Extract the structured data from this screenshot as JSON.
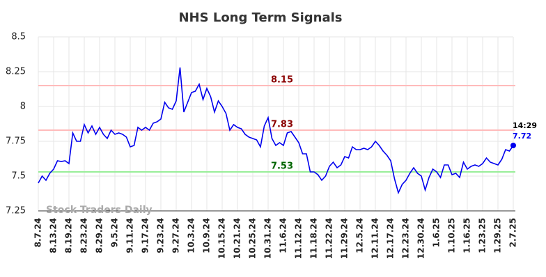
{
  "chart_data": {
    "type": "line",
    "title": "NHS Long Term Signals",
    "watermark": "Stock Traders Daily",
    "categories": [
      "8.7.24",
      null,
      null,
      null,
      "8.13.24",
      null,
      null,
      null,
      "8.19.24",
      null,
      null,
      null,
      "8.23.24",
      null,
      null,
      null,
      "8.29.24",
      null,
      null,
      null,
      "9.5.24",
      null,
      null,
      null,
      "9.11.24",
      null,
      null,
      null,
      "9.17.24",
      null,
      null,
      null,
      "9.23.24",
      null,
      null,
      null,
      "9.27.24",
      null,
      null,
      null,
      "10.3.24",
      null,
      null,
      null,
      "10.9.24",
      null,
      null,
      null,
      "10.15.24",
      null,
      null,
      null,
      "10.21.24",
      null,
      null,
      null,
      "10.25.24",
      null,
      null,
      null,
      "10.31.24",
      null,
      null,
      null,
      "11.6.24",
      null,
      null,
      null,
      "11.12.24",
      null,
      null,
      null,
      "11.18.24",
      null,
      null,
      null,
      "11.22.24",
      null,
      null,
      null,
      "11.29.24",
      null,
      null,
      null,
      "12.5.24",
      null,
      null,
      null,
      "12.11.24",
      null,
      null,
      null,
      "12.17.24",
      null,
      null,
      null,
      "12.23.24",
      null,
      null,
      null,
      "12.30.24",
      null,
      null,
      null,
      "1.6.25",
      null,
      null,
      null,
      "1.10.25",
      null,
      null,
      null,
      "1.16.25",
      null,
      null,
      null,
      "1.23.25",
      null,
      null,
      null,
      "1.29.25",
      null,
      null,
      null,
      "2.7.25"
    ],
    "series": [
      {
        "color": "#0000ee",
        "values": [
          7.45,
          7.5,
          7.47,
          7.52,
          7.55,
          7.61,
          7.605,
          7.61,
          7.59,
          7.81,
          7.75,
          7.75,
          7.87,
          7.81,
          7.86,
          7.8,
          7.85,
          7.8,
          7.77,
          7.83,
          7.8,
          7.81,
          7.8,
          7.78,
          7.71,
          7.72,
          7.85,
          7.83,
          7.85,
          7.83,
          7.88,
          7.89,
          7.91,
          8.03,
          7.99,
          7.98,
          8.04,
          8.28,
          7.96,
          8.03,
          8.1,
          8.11,
          8.16,
          8.05,
          8.13,
          8.07,
          7.96,
          8.04,
          8.0,
          7.95,
          7.83,
          7.87,
          7.85,
          7.84,
          7.8,
          7.78,
          7.77,
          7.76,
          7.71,
          7.86,
          7.92,
          7.77,
          7.72,
          7.74,
          7.72,
          7.81,
          7.82,
          7.78,
          7.74,
          7.66,
          7.66,
          7.53,
          7.53,
          7.51,
          7.47,
          7.5,
          7.57,
          7.6,
          7.56,
          7.58,
          7.64,
          7.63,
          7.71,
          7.69,
          7.69,
          7.7,
          7.69,
          7.71,
          7.75,
          7.72,
          7.68,
          7.65,
          7.61,
          7.48,
          7.38,
          7.44,
          7.47,
          7.52,
          7.56,
          7.52,
          7.5,
          7.4,
          7.49,
          7.55,
          7.53,
          7.49,
          7.58,
          7.58,
          7.51,
          7.52,
          7.49,
          7.6,
          7.55,
          7.57,
          7.58,
          7.57,
          7.59,
          7.63,
          7.6,
          7.59,
          7.58,
          7.62,
          7.69,
          7.68,
          7.72
        ]
      }
    ],
    "last_time": "14:29",
    "levels": [
      {
        "value": 8.15,
        "color": "#ffbbbb",
        "label_color": "#8b0000"
      },
      {
        "value": 7.83,
        "color": "#ffbbbb",
        "label_color": "#8b0000"
      },
      {
        "value": 7.53,
        "color": "#99ee99",
        "label_color": "#006400"
      }
    ],
    "ylim": [
      7.25,
      8.5
    ],
    "yticks": [
      7.25,
      7.5,
      7.75,
      8,
      8.25,
      8.5
    ],
    "grid": true
  }
}
